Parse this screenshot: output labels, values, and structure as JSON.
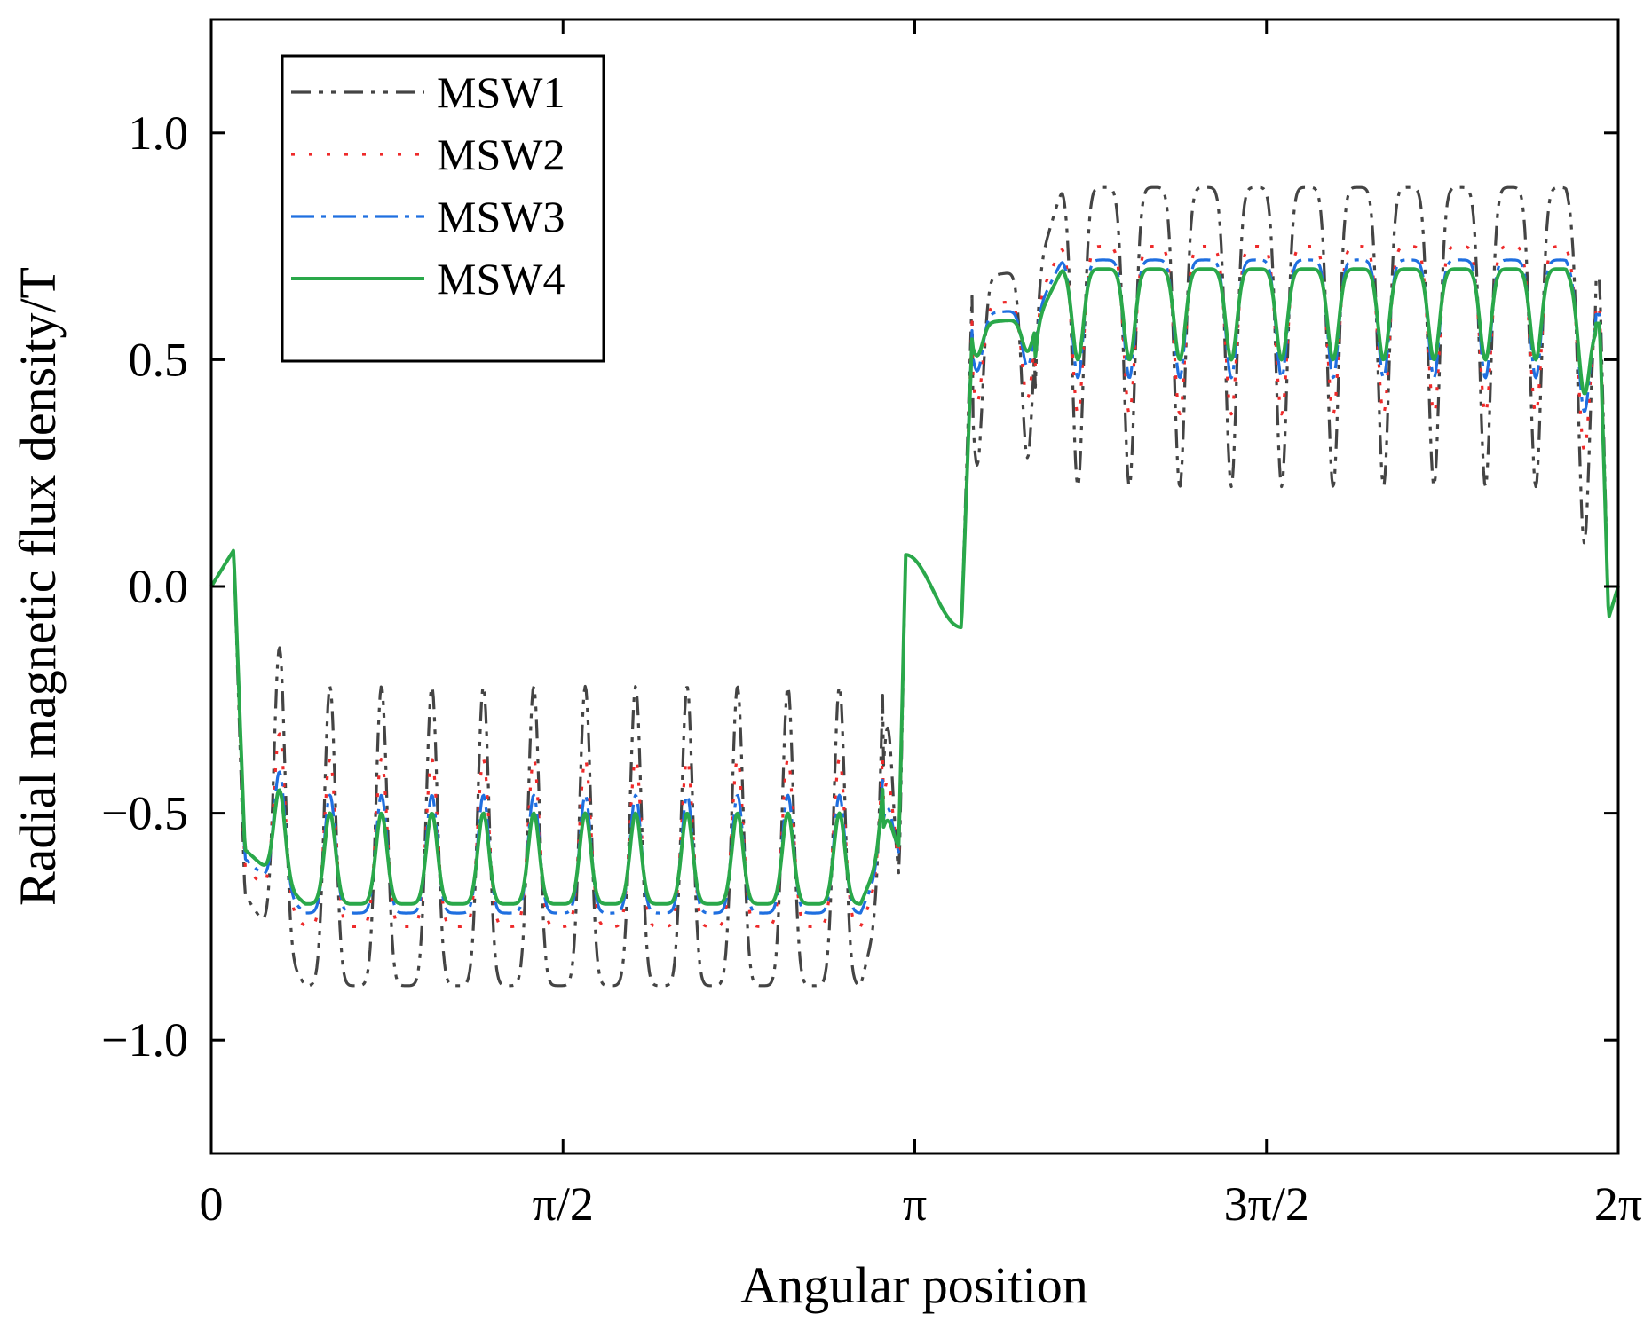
{
  "chart_data": {
    "type": "line",
    "title": "",
    "xlabel": "Angular position",
    "ylabel": "Radial magnetic flux density/T",
    "xlim": [
      0,
      6.283185
    ],
    "ylim": [
      -1.25,
      1.25
    ],
    "grid": false,
    "legend_position": "top-left",
    "xticks": [
      {
        "value": 0,
        "label": "0"
      },
      {
        "value": 1.570796,
        "label": "π/2"
      },
      {
        "value": 3.141593,
        "label": "π"
      },
      {
        "value": 4.712389,
        "label": "3π/2"
      },
      {
        "value": 6.283185,
        "label": "2π"
      }
    ],
    "yticks": [
      {
        "value": 1.0,
        "label": "1.0"
      },
      {
        "value": 0.5,
        "label": "0.5"
      },
      {
        "value": 0.0,
        "label": "0.0"
      },
      {
        "value": -0.5,
        "label": "−0.5"
      },
      {
        "value": -1.0,
        "label": "−1.0"
      }
    ],
    "slots": {
      "neg_troughs": [
        0.305,
        0.53,
        0.76,
        0.985,
        1.215,
        1.44,
        1.67,
        1.895,
        2.125,
        2.35,
        2.575,
        2.805,
        3.02
      ],
      "pos_troughs": [
        3.42,
        3.645,
        3.87,
        4.1,
        4.325,
        4.555,
        4.78,
        5.01,
        5.235,
        5.46,
        5.69,
        5.915,
        6.13
      ]
    },
    "series": [
      {
        "name": "MSW1",
        "color": "#444444",
        "dash": "22,9,5,9,5,9",
        "plateau": 0.88,
        "trough": 0.22,
        "edge_plateau": 0.68
      },
      {
        "name": "MSW2",
        "color": "#ee2a2a",
        "dash": "4,16",
        "plateau": 0.75,
        "trough": 0.38,
        "edge_plateau": 0.62
      },
      {
        "name": "MSW3",
        "color": "#1f6fe0",
        "dash": "26,8,5,8",
        "plateau": 0.72,
        "trough": 0.46,
        "edge_plateau": 0.6
      },
      {
        "name": "MSW4",
        "color": "#2aa84a",
        "dash": "",
        "plateau": 0.7,
        "trough": 0.5,
        "edge_plateau": 0.58
      }
    ]
  }
}
